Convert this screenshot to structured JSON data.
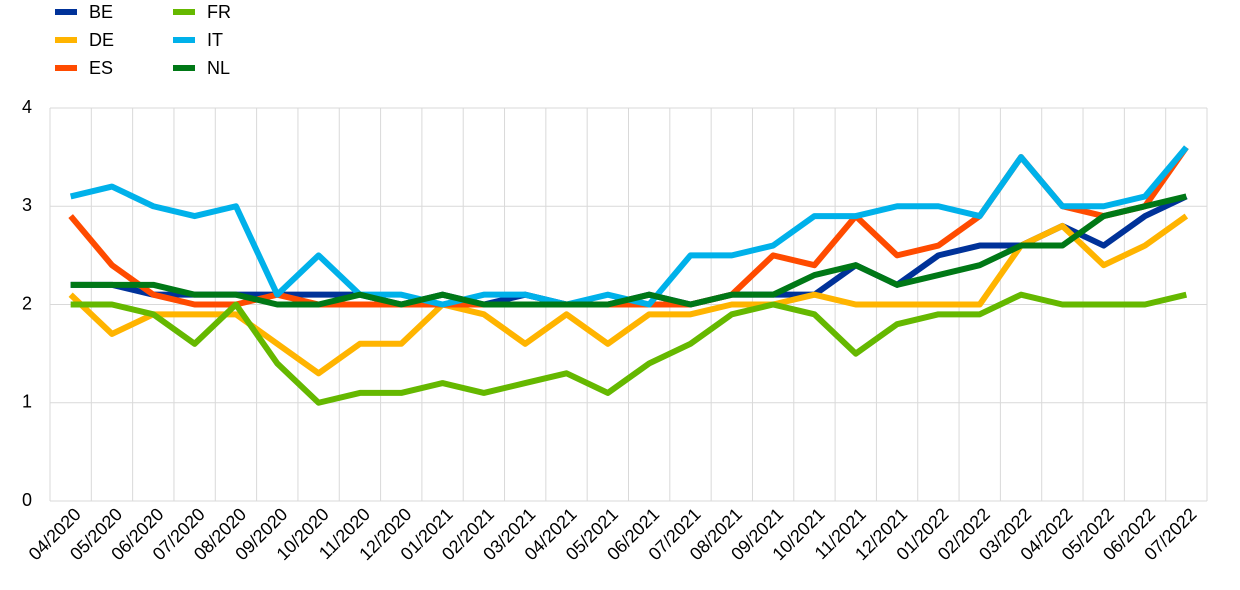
{
  "chart_data": {
    "type": "line",
    "categories": [
      "04/2020",
      "05/2020",
      "06/2020",
      "07/2020",
      "08/2020",
      "09/2020",
      "10/2020",
      "11/2020",
      "12/2020",
      "01/2021",
      "02/2021",
      "03/2021",
      "04/2021",
      "05/2021",
      "06/2021",
      "07/2021",
      "08/2021",
      "09/2021",
      "10/2021",
      "11/2021",
      "12/2021",
      "01/2022",
      "02/2022",
      "03/2022",
      "04/2022",
      "05/2022",
      "06/2022",
      "07/2022"
    ],
    "series": [
      {
        "name": "BE",
        "color": "#003299",
        "values": [
          2.2,
          2.2,
          2.1,
          2.1,
          2.1,
          2.1,
          2.1,
          2.1,
          2.0,
          2.1,
          2.0,
          2.1,
          2.0,
          2.0,
          2.1,
          2.0,
          2.1,
          2.1,
          2.1,
          2.4,
          2.2,
          2.5,
          2.6,
          2.6,
          2.8,
          2.6,
          2.9,
          3.1
        ]
      },
      {
        "name": "DE",
        "color": "#ffb400",
        "values": [
          2.1,
          1.7,
          1.9,
          1.9,
          1.9,
          1.6,
          1.3,
          1.6,
          1.6,
          2.0,
          1.9,
          1.6,
          1.9,
          1.6,
          1.9,
          1.9,
          2.0,
          2.0,
          2.1,
          2.0,
          2.0,
          2.0,
          2.0,
          2.6,
          2.8,
          2.4,
          2.6,
          2.9
        ]
      },
      {
        "name": "ES",
        "color": "#ff4b00",
        "values": [
          2.9,
          2.4,
          2.1,
          2.0,
          2.0,
          2.1,
          2.0,
          2.0,
          2.0,
          2.0,
          2.0,
          2.0,
          2.0,
          2.0,
          2.0,
          2.0,
          2.1,
          2.5,
          2.4,
          2.9,
          2.5,
          2.6,
          2.9,
          3.5,
          3.0,
          2.9,
          3.0,
          3.6
        ]
      },
      {
        "name": "FR",
        "color": "#65b800",
        "values": [
          2.0,
          2.0,
          1.9,
          1.6,
          2.0,
          1.4,
          1.0,
          1.1,
          1.1,
          1.2,
          1.1,
          1.2,
          1.3,
          1.1,
          1.4,
          1.6,
          1.9,
          2.0,
          1.9,
          1.5,
          1.8,
          1.9,
          1.9,
          2.1,
          2.0,
          2.0,
          2.0,
          2.1
        ]
      },
      {
        "name": "IT",
        "color": "#00b1ea",
        "values": [
          3.1,
          3.2,
          3.0,
          2.9,
          3.0,
          2.1,
          2.5,
          2.1,
          2.1,
          2.0,
          2.1,
          2.1,
          2.0,
          2.1,
          2.0,
          2.5,
          2.5,
          2.6,
          2.9,
          2.9,
          3.0,
          3.0,
          2.9,
          3.5,
          3.0,
          3.0,
          3.1,
          3.6
        ]
      },
      {
        "name": "NL",
        "color": "#007816",
        "values": [
          2.2,
          2.2,
          2.2,
          2.1,
          2.1,
          2.0,
          2.0,
          2.1,
          2.0,
          2.1,
          2.0,
          2.0,
          2.0,
          2.0,
          2.1,
          2.0,
          2.1,
          2.1,
          2.3,
          2.4,
          2.2,
          2.3,
          2.4,
          2.6,
          2.6,
          2.9,
          3.0,
          3.1
        ]
      }
    ],
    "ylim": [
      0,
      4
    ],
    "yticks": [
      0,
      1,
      2,
      3,
      4
    ],
    "grid": true
  }
}
